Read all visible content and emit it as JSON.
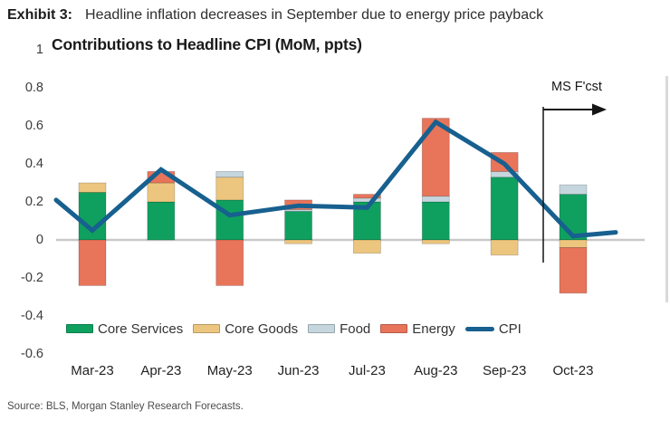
{
  "exhibit": {
    "label": "Exhibit 3:",
    "headline": "Headline inflation decreases in September due to energy price payback"
  },
  "source": "Source: BLS, Morgan Stanley Research Forecasts.",
  "colors": {
    "core_services": "#0fa05f",
    "core_goods": "#ecc67e",
    "food": "#c5d6de",
    "energy": "#e8745a",
    "cpi_line": "#17608f",
    "zero_line": "#c9c9c9",
    "annotation": "#141414"
  },
  "chart_data": {
    "type": "bar",
    "subtype": "stacked contribution bars with line overlay",
    "title": "Contributions to Headline CPI (MoM, ppts)",
    "categories": [
      "Mar-23",
      "Apr-23",
      "May-23",
      "Jun-23",
      "Jul-23",
      "Aug-23",
      "Sep-23",
      "Oct-23"
    ],
    "y_ticks": [
      "1",
      "0.8",
      "0.6",
      "0.4",
      "0.2",
      "0",
      "-0.2",
      "-0.4",
      "-0.6"
    ],
    "ylim": [
      -0.6,
      1
    ],
    "grid": "zero-line only",
    "legend_position": "bottom",
    "series": [
      {
        "name": "Core Services",
        "key": "core_services",
        "values": [
          0.25,
          0.2,
          0.21,
          0.15,
          0.2,
          0.2,
          0.33,
          0.24
        ]
      },
      {
        "name": "Core Goods",
        "key": "core_goods",
        "values": [
          0.05,
          0.1,
          0.12,
          -0.02,
          -0.07,
          -0.02,
          -0.08,
          -0.04
        ]
      },
      {
        "name": "Food",
        "key": "food",
        "values": [
          0.0,
          0.0,
          0.03,
          0.01,
          0.02,
          0.03,
          0.03,
          0.05
        ]
      },
      {
        "name": "Energy",
        "key": "energy",
        "values": [
          -0.24,
          0.06,
          -0.24,
          0.05,
          0.02,
          0.41,
          0.1,
          -0.24
        ]
      }
    ],
    "line": {
      "name": "CPI",
      "key": "cpi_line",
      "values": [
        0.05,
        0.37,
        0.13,
        0.18,
        0.17,
        0.62,
        0.4,
        0.02
      ],
      "edge_left": 0.21,
      "edge_right": 0.04
    },
    "forecast": {
      "label": "MS F'cst",
      "separator_after_category": "Sep-23"
    }
  }
}
